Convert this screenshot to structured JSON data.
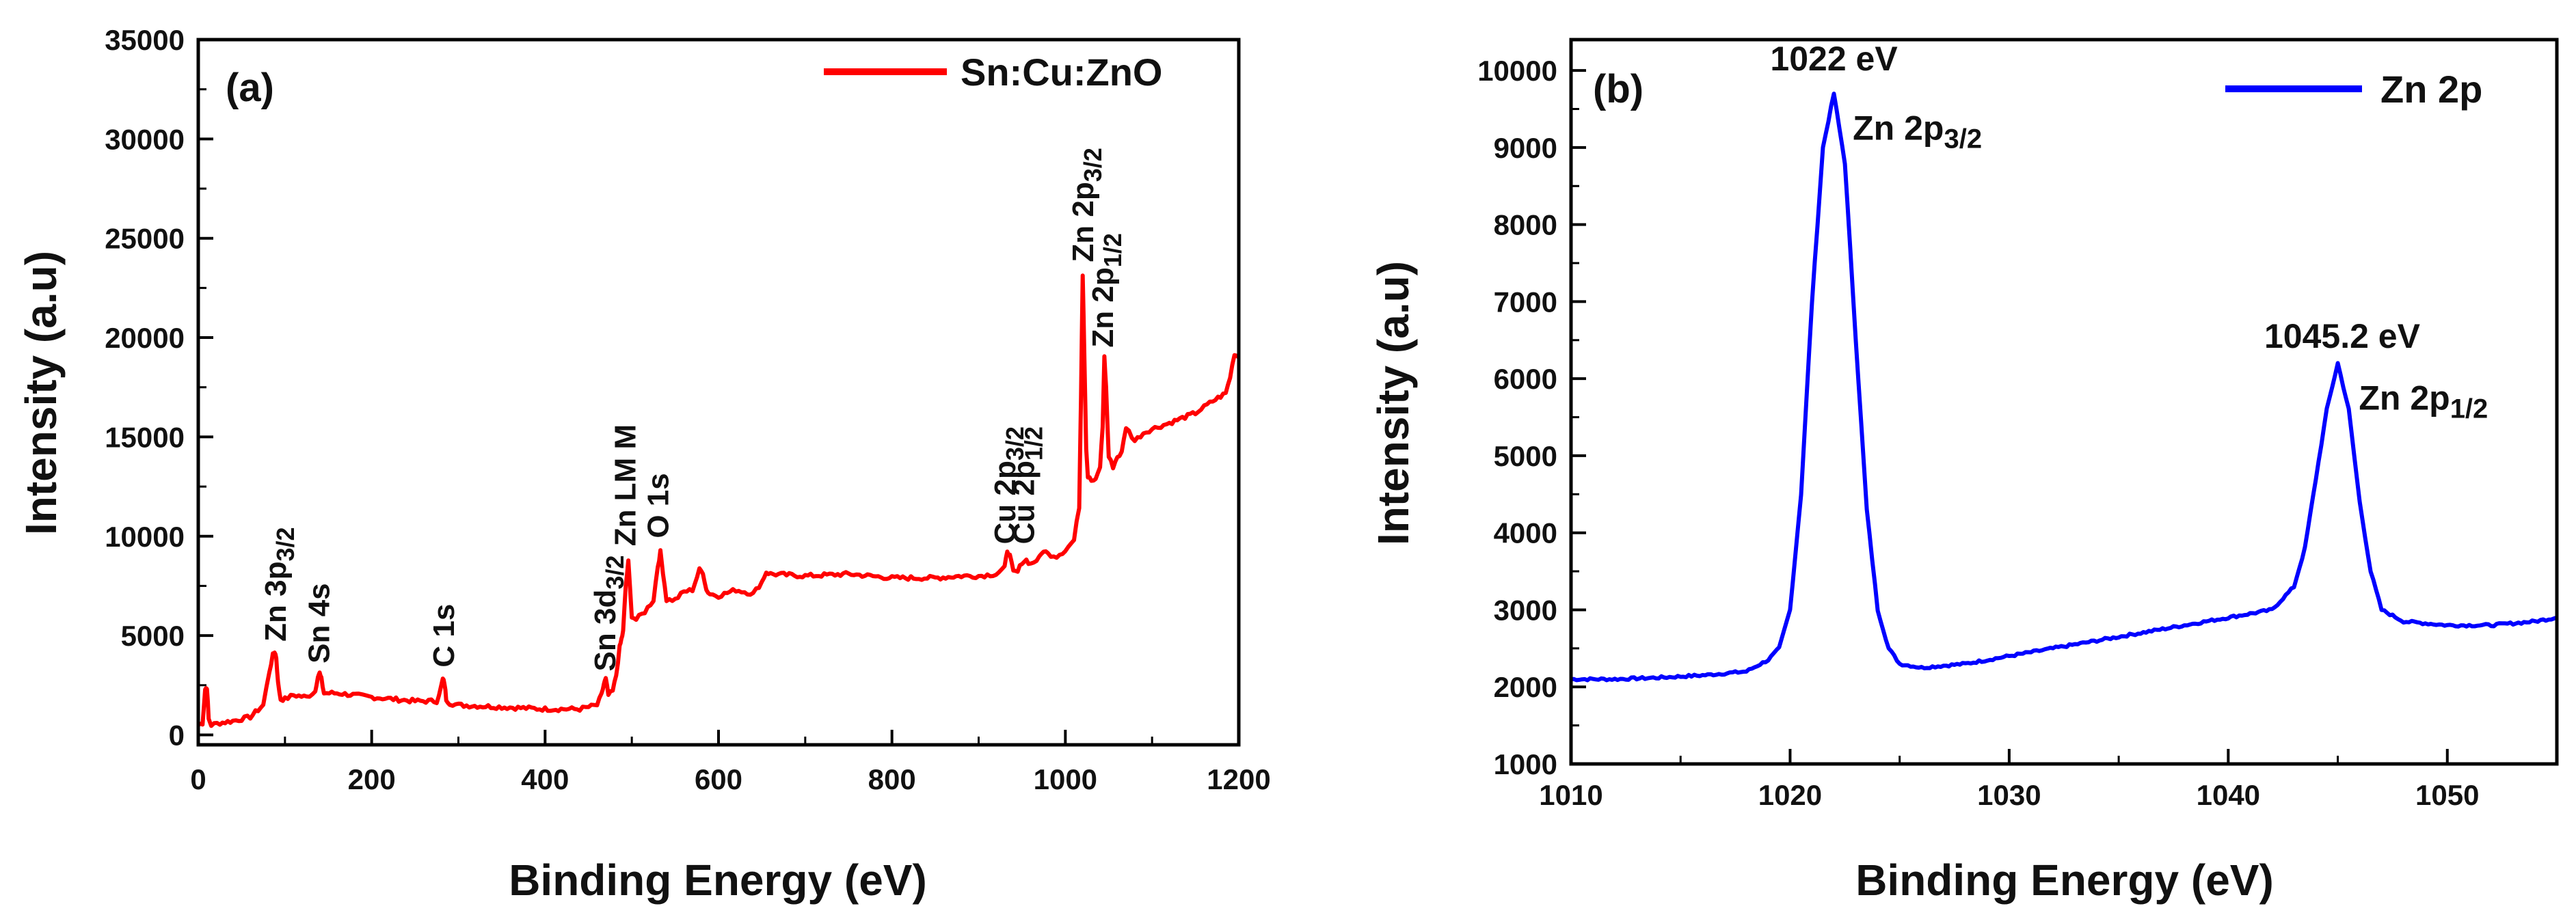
{
  "chart_data": [
    {
      "type": "line",
      "panel_label": "(a)",
      "title": "",
      "xlabel": "Binding Energy (eV)",
      "ylabel": "Intensity (a.u)",
      "xlim": [
        0,
        1200
      ],
      "ylim": [
        -500,
        35000
      ],
      "xticks": [
        0,
        200,
        400,
        600,
        800,
        1000,
        1200
      ],
      "yticks": [
        0,
        5000,
        10000,
        15000,
        20000,
        25000,
        30000,
        35000
      ],
      "legend": {
        "entries": [
          "Sn:Cu:ZnO"
        ],
        "position": "top-right",
        "color": "#ff0000"
      },
      "color": "#ff0000",
      "series": [
        {
          "name": "Sn:Cu:ZnO",
          "x": [
            0,
            5,
            8,
            10,
            12,
            15,
            25,
            40,
            60,
            75,
            82,
            86,
            88,
            90,
            92,
            95,
            100,
            110,
            125,
            135,
            138,
            140,
            142,
            145,
            160,
            200,
            250,
            275,
            280,
            282,
            284,
            286,
            290,
            300,
            350,
            400,
            440,
            460,
            465,
            468,
            470,
            473,
            478,
            482,
            486,
            488,
            490,
            493,
            496,
            500,
            505,
            515,
            525,
            530,
            533,
            536,
            540,
            550,
            560,
            570,
            578,
            582,
            586,
            590,
            600,
            620,
            640,
            650,
            655,
            660,
            700,
            750,
            800,
            850,
            880,
            900,
            920,
            930,
            933,
            936,
            940,
            945,
            950,
            955,
            960,
            970,
            975,
            980,
            990,
            1000,
            1010,
            1016,
            1018,
            1020,
            1022,
            1024,
            1026,
            1030,
            1035,
            1040,
            1043,
            1045,
            1047,
            1050,
            1055,
            1060,
            1065,
            1070,
            1080,
            1090,
            1100,
            1120,
            1150,
            1170,
            1185,
            1190,
            1195,
            1200
          ],
          "y": [
            500,
            600,
            2300,
            2400,
            800,
            500,
            600,
            700,
            900,
            1500,
            3200,
            4000,
            4200,
            3900,
            2600,
            1800,
            1800,
            2000,
            1900,
            2200,
            3000,
            3100,
            2800,
            2100,
            2100,
            1900,
            1700,
            1700,
            2400,
            2800,
            2600,
            1800,
            1600,
            1500,
            1400,
            1300,
            1300,
            1500,
            2000,
            2600,
            2800,
            2000,
            2200,
            3000,
            4400,
            4800,
            5200,
            7500,
            8700,
            6000,
            5800,
            6200,
            6800,
            8500,
            9200,
            8200,
            6800,
            6800,
            7200,
            7300,
            8300,
            8200,
            7300,
            7100,
            7000,
            7300,
            7100,
            7700,
            8200,
            8100,
            8000,
            8100,
            7900,
            7900,
            8000,
            8000,
            8100,
            8400,
            9300,
            9000,
            8200,
            8200,
            8700,
            8800,
            8600,
            8900,
            9300,
            9100,
            9000,
            9300,
            9800,
            11500,
            17000,
            23200,
            19000,
            14500,
            13000,
            12800,
            12800,
            13500,
            15500,
            19000,
            17500,
            14000,
            13500,
            14000,
            14200,
            15500,
            14800,
            15200,
            15400,
            15700,
            16200,
            16800,
            17200,
            18000,
            19200,
            19000
          ]
        }
      ],
      "annotations": [
        {
          "text": "Zn 3p",
          "sub": "3/2",
          "x": 90,
          "y": 4700
        },
        {
          "text": "Sn 4s",
          "sub": "",
          "x": 140,
          "y": 3600
        },
        {
          "text": "C 1s",
          "sub": "",
          "x": 284,
          "y": 3400
        },
        {
          "text": "Sn 3d",
          "sub": "3/2",
          "x": 470,
          "y": 3200
        },
        {
          "text": "Zn LM M",
          "sub": "",
          "x": 493,
          "y": 9500
        },
        {
          "text": "O 1s",
          "sub": "",
          "x": 531,
          "y": 9900
        },
        {
          "text": "Cu 2p",
          "sub": "3/2",
          "x": 931,
          "y": 9600
        },
        {
          "text": "Cu 2p",
          "sub": "1/2",
          "x": 953,
          "y": 9600
        },
        {
          "text": "Zn 2p",
          "sub": "3/2",
          "x": 1021,
          "y": 23800
        },
        {
          "text": "Zn 2p",
          "sub": "1/2",
          "x": 1044,
          "y": 19500
        }
      ]
    },
    {
      "type": "line",
      "panel_label": "(b)",
      "title": "",
      "xlabel": "Binding Energy (eV)",
      "ylabel": "Intensity (a.u)",
      "xlim": [
        1010,
        1055
      ],
      "ylim": [
        1000,
        10400
      ],
      "xticks": [
        1010,
        1020,
        1030,
        1040,
        1050
      ],
      "yticks": [
        1000,
        2000,
        3000,
        4000,
        5000,
        6000,
        7000,
        8000,
        9000,
        10000
      ],
      "legend": {
        "entries": [
          "Zn 2p"
        ],
        "position": "top-right",
        "color": "#0000ff"
      },
      "color": "#0000ff",
      "series": [
        {
          "name": "Zn 2p",
          "x": [
            1010,
            1012,
            1014,
            1016,
            1018,
            1019,
            1019.5,
            1020,
            1020.5,
            1021,
            1021.5,
            1022,
            1022.5,
            1023,
            1023.5,
            1024,
            1024.5,
            1025,
            1026,
            1028,
            1030,
            1032,
            1034,
            1036,
            1038,
            1039,
            1040,
            1041,
            1042,
            1043,
            1043.5,
            1044,
            1044.5,
            1045,
            1045.5,
            1046,
            1046.5,
            1047,
            1048,
            1050,
            1052,
            1054,
            1055
          ],
          "y": [
            2100,
            2100,
            2120,
            2150,
            2200,
            2350,
            2500,
            3000,
            4500,
            7000,
            9000,
            9700,
            8800,
            6500,
            4300,
            3000,
            2500,
            2300,
            2250,
            2300,
            2400,
            2500,
            2600,
            2700,
            2800,
            2850,
            2900,
            2950,
            3000,
            3300,
            3800,
            4700,
            5600,
            6200,
            5600,
            4400,
            3500,
            3000,
            2850,
            2800,
            2800,
            2850,
            2900
          ]
        }
      ],
      "annotations": [
        {
          "text": "1022 eV",
          "sub": "",
          "x": 1022,
          "y": 10000
        },
        {
          "text": "Zn 2p",
          "sub": "3/2",
          "x": 1022.3,
          "y": 9100
        },
        {
          "text": "1045.2 eV",
          "sub": "",
          "x": 1045.2,
          "y": 6400
        },
        {
          "text": "Zn 2p",
          "sub": "1/2",
          "x": 1045.4,
          "y": 5600
        }
      ]
    }
  ]
}
